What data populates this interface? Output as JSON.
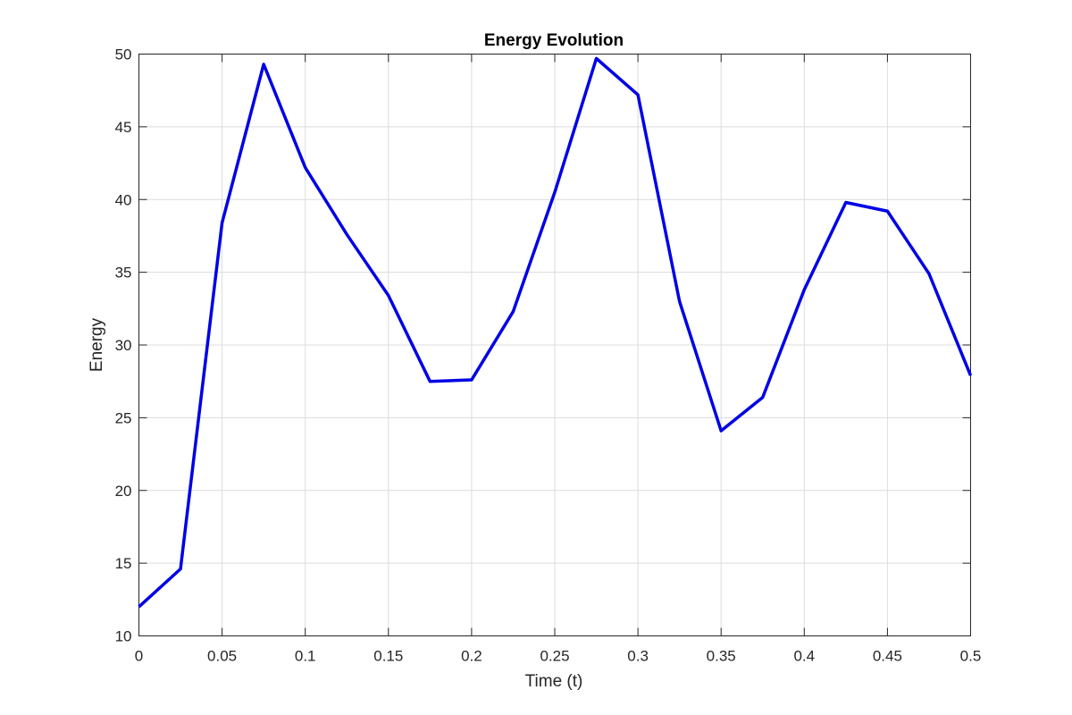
{
  "chart_data": {
    "type": "line",
    "title": "Energy Evolution",
    "xlabel": "Time (t)",
    "ylabel": "Energy",
    "xlim": [
      0,
      0.5
    ],
    "ylim": [
      10,
      50
    ],
    "grid": true,
    "x_ticks": [
      "0",
      "0.05",
      "0.1",
      "0.15",
      "0.2",
      "0.25",
      "0.3",
      "0.35",
      "0.4",
      "0.45",
      "0.5"
    ],
    "y_ticks": [
      "10",
      "15",
      "20",
      "25",
      "30",
      "35",
      "40",
      "45",
      "50"
    ],
    "series": [
      {
        "color": "#0000e6",
        "x": [
          0,
          0.025,
          0.05,
          0.075,
          0.1,
          0.125,
          0.15,
          0.175,
          0.2,
          0.225,
          0.25,
          0.275,
          0.3,
          0.325,
          0.35,
          0.375,
          0.4,
          0.425,
          0.45,
          0.475,
          0.5
        ],
        "y": [
          12.0,
          14.6,
          38.4,
          49.3,
          42.2,
          37.6,
          33.4,
          27.5,
          27.6,
          32.3,
          40.5,
          49.7,
          47.2,
          33.0,
          24.1,
          26.4,
          33.8,
          39.8,
          39.2,
          34.9,
          27.9
        ]
      }
    ]
  }
}
